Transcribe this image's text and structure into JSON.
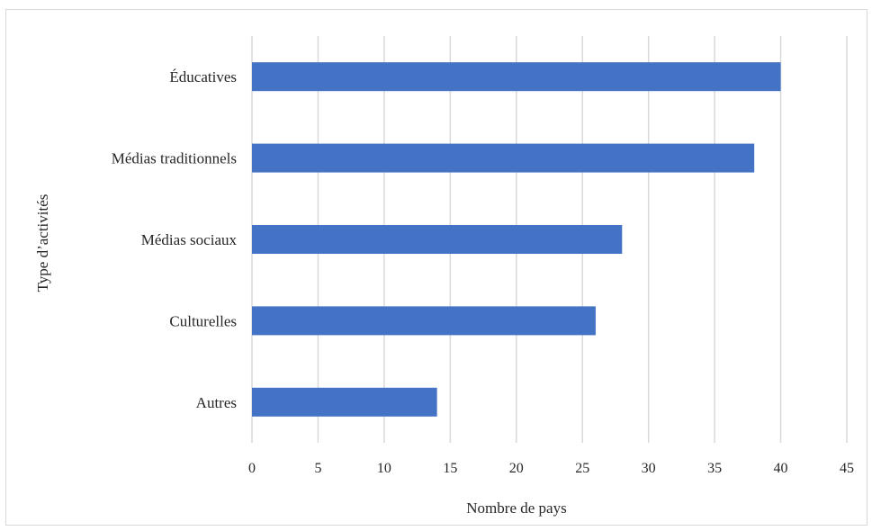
{
  "chart_data": {
    "type": "bar",
    "orientation": "horizontal",
    "categories": [
      "Éducatives",
      "Médias traditionnels",
      "Médias sociaux",
      "Culturelles",
      "Autres"
    ],
    "values": [
      40,
      38,
      28,
      26,
      14
    ],
    "title": "",
    "xlabel": "Nombre de pays",
    "ylabel": "Type d’activités",
    "xlim": [
      0,
      45
    ],
    "xticks": [
      0,
      5,
      10,
      15,
      20,
      25,
      30,
      35,
      40,
      45
    ],
    "grid": true,
    "legend": "none",
    "bar_color": "#4472c4",
    "grid_color": "#d9d9d9"
  }
}
